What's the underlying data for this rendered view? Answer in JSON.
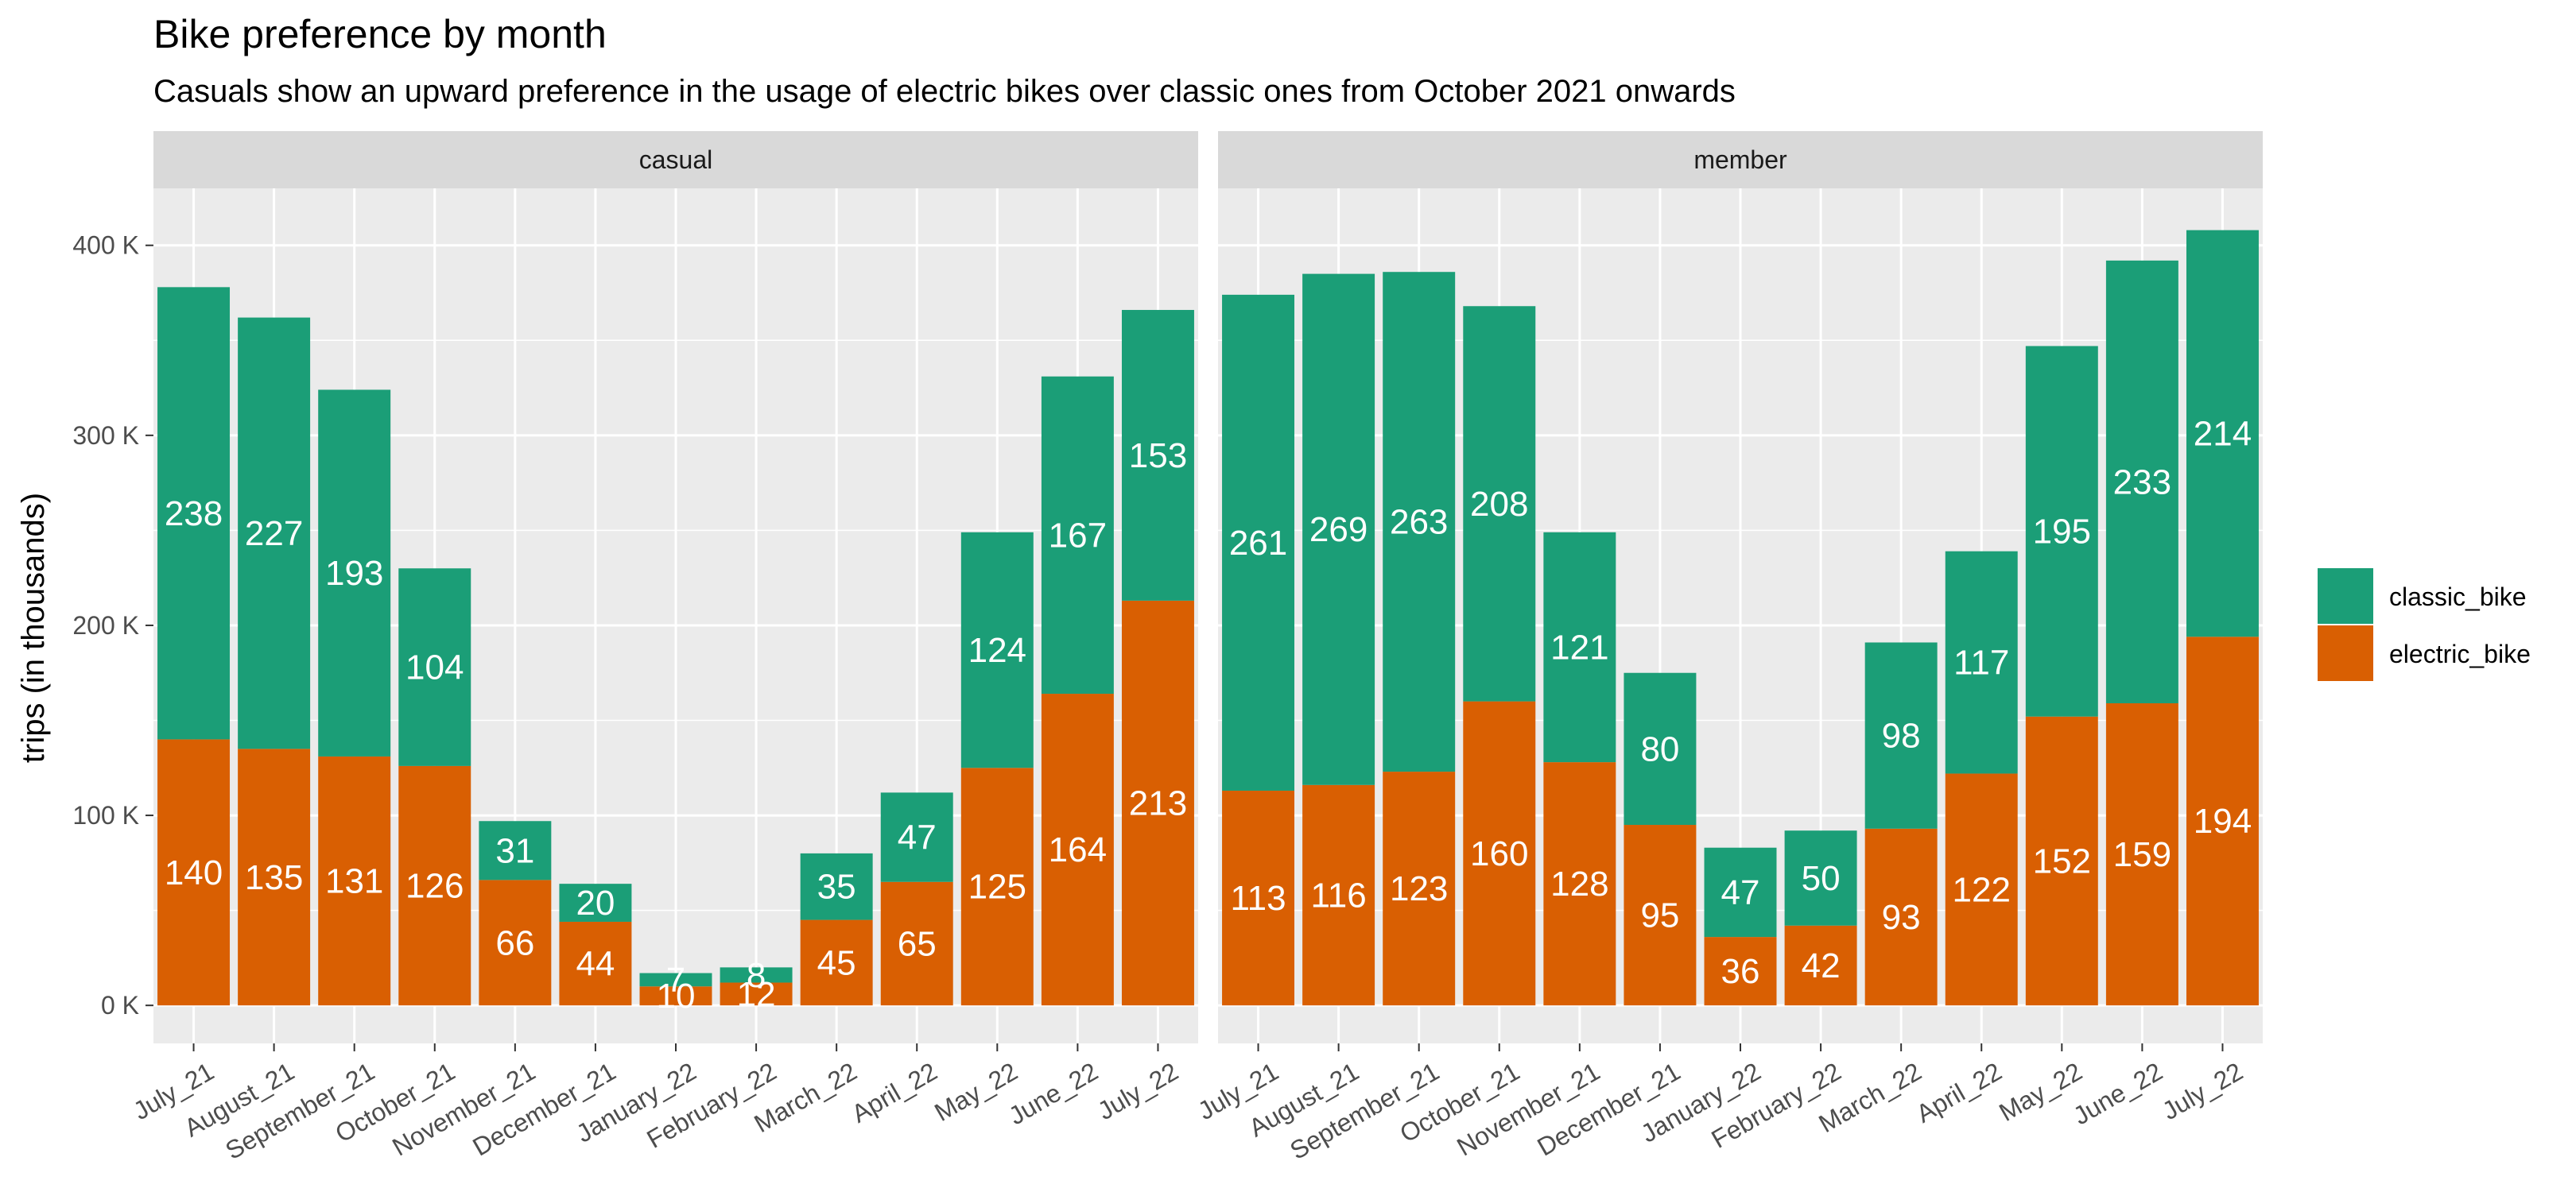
{
  "chart_data": {
    "type": "bar",
    "stacked": true,
    "title": "Bike preference by month",
    "subtitle": "Casuals show an upward preference in the usage of electric bikes over classic ones from October 2021 onwards",
    "ylabel": "trips (in thousands)",
    "xlabel": "",
    "ylim": [
      -20,
      430
    ],
    "y_ticks": [
      0,
      100,
      200,
      300,
      400
    ],
    "y_tick_labels": [
      "0 K",
      "100 K",
      "200 K",
      "300 K",
      "400 K"
    ],
    "grid": true,
    "legend_position": "right",
    "categories": [
      "July_21",
      "August_21",
      "September_21",
      "October_21",
      "November_21",
      "December_21",
      "January_22",
      "February_22",
      "March_22",
      "April_22",
      "May_22",
      "June_22",
      "July_22"
    ],
    "series": [
      {
        "name": "classic_bike",
        "color": "#1b9e77"
      },
      {
        "name": "electric_bike",
        "color": "#d95f02"
      }
    ],
    "panels": [
      {
        "label": "casual",
        "classic_bike": [
          238,
          227,
          193,
          104,
          31,
          20,
          7,
          8,
          35,
          47,
          124,
          167,
          153
        ],
        "electric_bike": [
          140,
          135,
          131,
          126,
          66,
          44,
          10,
          12,
          45,
          65,
          125,
          164,
          213
        ]
      },
      {
        "label": "member",
        "classic_bike": [
          261,
          269,
          263,
          208,
          121,
          80,
          47,
          50,
          98,
          117,
          195,
          233,
          214
        ],
        "electric_bike": [
          113,
          116,
          123,
          160,
          128,
          95,
          36,
          42,
          93,
          122,
          152,
          159,
          194
        ]
      }
    ]
  }
}
